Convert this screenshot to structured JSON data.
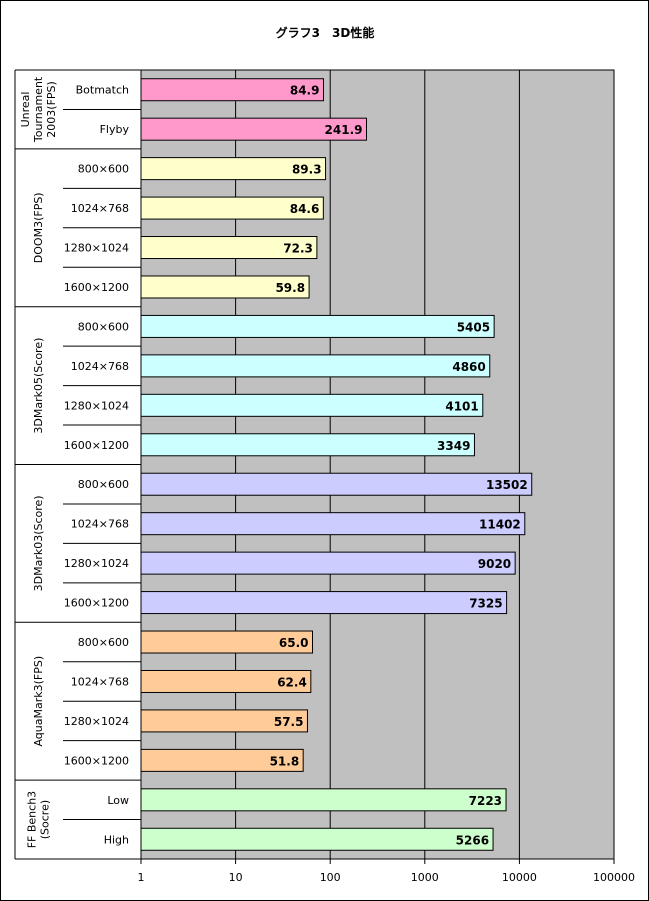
{
  "chart_data": {
    "type": "bar",
    "orientation": "horizontal",
    "title": "グラフ3　3D性能",
    "xscale": "log",
    "xlim": [
      1,
      100000
    ],
    "xticks": [
      "1",
      "10",
      "100",
      "1000",
      "10000",
      "100000"
    ],
    "grid": true,
    "legend": "none",
    "groups": [
      {
        "label": "Unreal Tournament 2003(FPS)",
        "label_lines": [
          "Unreal",
          "Tournament",
          "2003(FPS)"
        ],
        "color": "#ff99cc",
        "categories": [
          "Botmatch",
          "Flyby"
        ],
        "values": [
          84.9,
          241.9
        ],
        "value_labels": [
          "84.9",
          "241.9"
        ]
      },
      {
        "label": "DOOM3(FPS)",
        "label_lines": [
          "DOOM3(FPS)"
        ],
        "color": "#ffffcc",
        "categories": [
          "800×600",
          "1024×768",
          "1280×1024",
          "1600×1200"
        ],
        "values": [
          89.3,
          84.6,
          72.3,
          59.8
        ],
        "value_labels": [
          "89.3",
          "84.6",
          "72.3",
          "59.8"
        ]
      },
      {
        "label": "3DMark05(Score)",
        "label_lines": [
          "3DMark05(Score)"
        ],
        "color": "#ccffff",
        "categories": [
          "800×600",
          "1024×768",
          "1280×1024",
          "1600×1200"
        ],
        "values": [
          5405,
          4860,
          4101,
          3349
        ],
        "value_labels": [
          "5405",
          "4860",
          "4101",
          "3349"
        ]
      },
      {
        "label": "3DMark03(Score)",
        "label_lines": [
          "3DMark03(Score)"
        ],
        "color": "#ccccff",
        "categories": [
          "800×600",
          "1024×768",
          "1280×1024",
          "1600×1200"
        ],
        "values": [
          13502,
          11402,
          9020,
          7325
        ],
        "value_labels": [
          "13502",
          "11402",
          "9020",
          "7325"
        ]
      },
      {
        "label": "AquaMark3(FPS)",
        "label_lines": [
          "AquaMark3(FPS)"
        ],
        "color": "#ffcc99",
        "categories": [
          "800×600",
          "1024×768",
          "1280×1024",
          "1600×1200"
        ],
        "values": [
          65.0,
          62.4,
          57.5,
          51.8
        ],
        "value_labels": [
          "65.0",
          "62.4",
          "57.5",
          "51.8"
        ]
      },
      {
        "label": "FF Bench3 (Socre)",
        "label_lines": [
          "FF Bench3",
          "(Socre)"
        ],
        "color": "#ccffcc",
        "categories": [
          "Low",
          "High"
        ],
        "values": [
          7223,
          5266
        ],
        "value_labels": [
          "7223",
          "5266"
        ]
      }
    ],
    "colors": {
      "plot_background": "#c0c0c0",
      "grid": "#000000",
      "bar_border": "#000000"
    }
  }
}
